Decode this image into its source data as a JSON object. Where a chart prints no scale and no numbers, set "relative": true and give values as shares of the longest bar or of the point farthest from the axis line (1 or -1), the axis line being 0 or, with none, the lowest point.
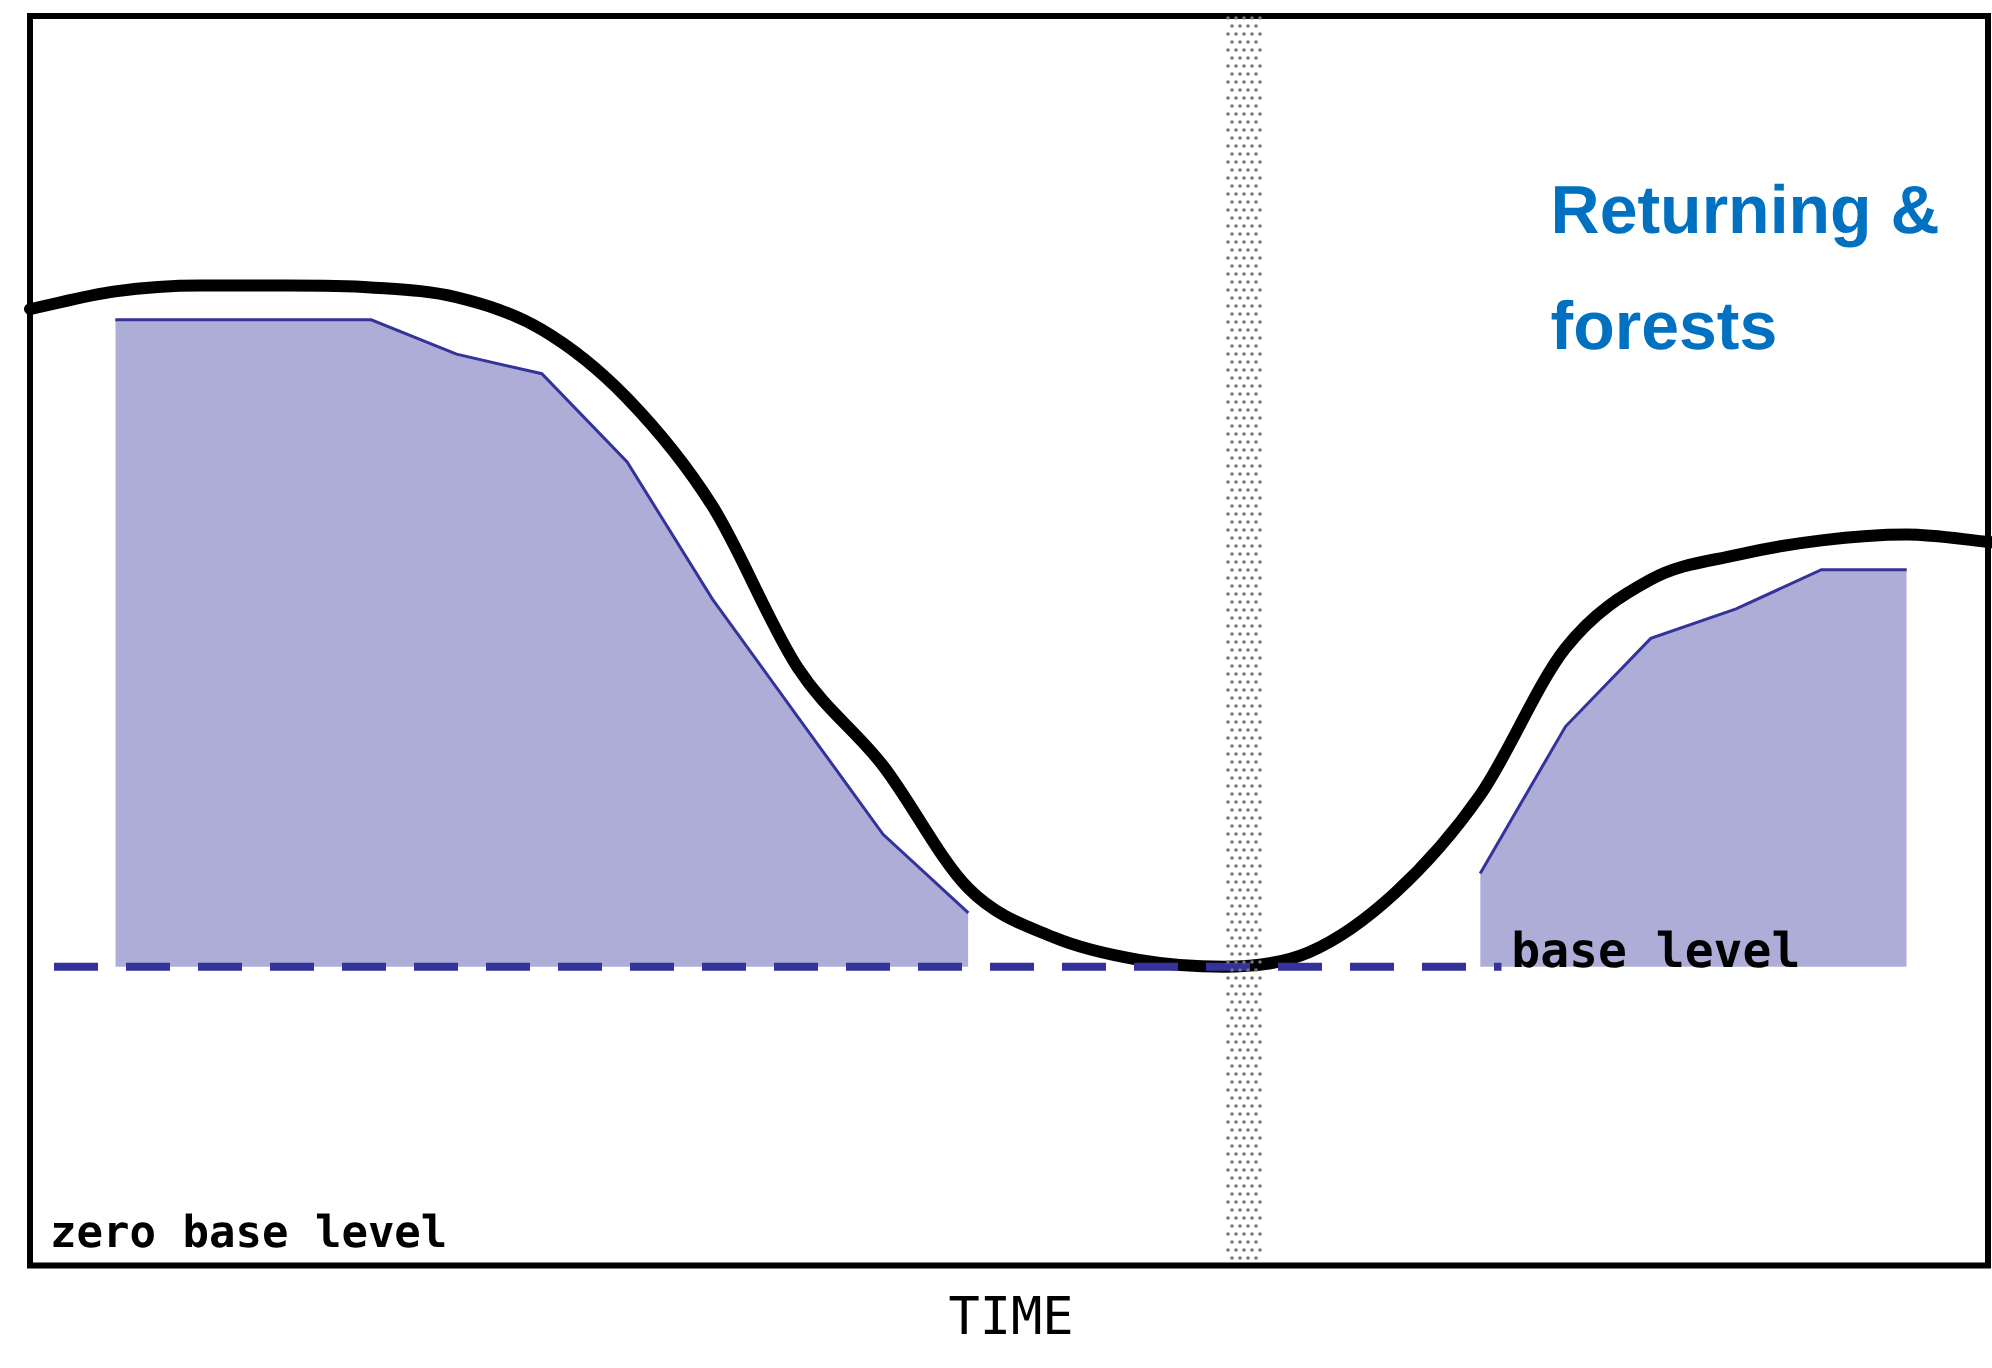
{
  "chart_data": {
    "type": "line",
    "relative": true,
    "xlabel": "TIME",
    "categories": [
      null,
      null,
      null,
      null,
      null,
      null,
      null,
      null,
      null,
      null,
      null,
      null,
      null,
      null,
      null,
      null,
      null,
      null,
      null,
      null,
      null,
      null,
      null,
      null
    ],
    "series": [
      {
        "type": "area",
        "color": "#33339a",
        "values": [
          null,
          0.965,
          0.965,
          0.965,
          0.965,
          0.93,
          0.91,
          0.82,
          0.68,
          0.56,
          0.44,
          0.36,
          null,
          null,
          null,
          null,
          null,
          null,
          null,
          null,
          null,
          null,
          null,
          null
        ]
      },
      {
        "type": "area",
        "color": "#33339a",
        "values": [
          null,
          null,
          null,
          null,
          null,
          null,
          null,
          null,
          null,
          null,
          null,
          null,
          null,
          null,
          null,
          null,
          null,
          0.4,
          0.55,
          0.64,
          0.67,
          0.71,
          0.71,
          null
        ]
      },
      {
        "color": "#000000",
        "values": [
          0.976,
          0.994,
          1.0,
          1.0,
          0.998,
          0.988,
          0.955,
          0.885,
          0.775,
          0.61,
          0.51,
          0.385,
          0.335,
          0.312,
          0.305,
          0.32,
          0.38,
          0.48,
          0.63,
          0.7,
          0.725,
          0.74,
          0.746,
          0.738
        ]
      }
    ],
    "ref_lines": [
      {
        "axis": "y",
        "value": 0.305,
        "label": "base level",
        "color": "#33339a",
        "line_style": "dashed"
      }
    ],
    "annotations": [
      "zero base level",
      "Returning & forests"
    ],
    "grid": false,
    "legend": false,
    "marker": "none",
    "line_style": "solid"
  }
}
